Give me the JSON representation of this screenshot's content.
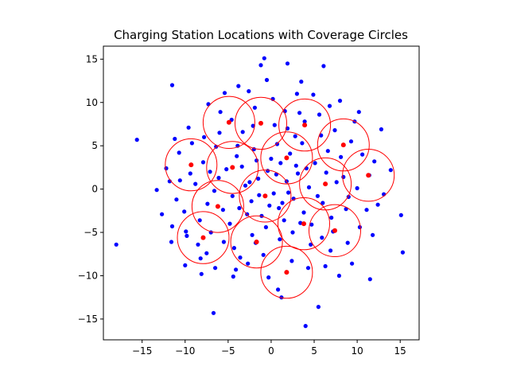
{
  "chart_data": {
    "type": "scatter",
    "title": "Charging Station Locations with Coverage Circles",
    "xlabel": "",
    "ylabel": "",
    "xlim": [
      -19.5,
      17.2
    ],
    "ylim": [
      -17.4,
      16.5
    ],
    "x_ticks": [
      -15,
      -10,
      -5,
      0,
      5,
      10,
      15
    ],
    "y_ticks": [
      -15,
      -10,
      -5,
      0,
      5,
      10,
      15
    ],
    "grid": false,
    "legend": "none",
    "colors": {
      "points": "#0000ff",
      "stations": "#ff0000",
      "circles": "#ff0000"
    },
    "coverage_radius": 3,
    "points_note": "dense cloud of user locations, roughly Gaussian around the origin",
    "points": [
      [
        -18.0,
        -6.4
      ],
      [
        -15.6,
        5.7
      ],
      [
        -13.3,
        -0.1
      ],
      [
        -11.5,
        12.0
      ],
      [
        -6.7,
        -14.3
      ],
      [
        15.3,
        -7.3
      ],
      [
        15.1,
        -3.0
      ],
      [
        13.9,
        2.2
      ],
      [
        11.5,
        -10.4
      ],
      [
        4.0,
        -15.8
      ],
      [
        5.5,
        -13.6
      ],
      [
        -0.8,
        15.1
      ],
      [
        1.9,
        14.5
      ],
      [
        -1.2,
        14.3
      ],
      [
        6.1,
        14.2
      ],
      [
        -11.2,
        5.8
      ],
      [
        -10.0,
        -8.8
      ],
      [
        -8.2,
        -8.0
      ],
      [
        12.8,
        6.9
      ],
      [
        13.1,
        -0.6
      ],
      [
        -10.6,
        1.0
      ],
      [
        -9.8,
        -5.4
      ],
      [
        -11.5,
        -4.3
      ],
      [
        9.4,
        -8.6
      ],
      [
        10.2,
        8.9
      ],
      [
        -3.8,
        11.9
      ],
      [
        3.5,
        12.4
      ],
      [
        1.2,
        -12.5
      ],
      [
        -4.4,
        -10.1
      ],
      [
        8.0,
        10.2
      ],
      [
        -1.5,
        1.2
      ],
      [
        0.3,
        -0.5
      ],
      [
        1.8,
        0.9
      ],
      [
        -0.4,
        2.1
      ],
      [
        0.9,
        -2.2
      ],
      [
        -2.3,
        -1.4
      ],
      [
        2.6,
        -1.1
      ],
      [
        -1.1,
        -3.1
      ],
      [
        3.1,
        1.8
      ],
      [
        -3.0,
        0.4
      ],
      [
        0.0,
        3.5
      ],
      [
        1.5,
        -3.6
      ],
      [
        -3.4,
        2.6
      ],
      [
        3.8,
        -2.7
      ],
      [
        -0.6,
        -4.4
      ],
      [
        4.4,
        0.2
      ],
      [
        -4.5,
        -0.8
      ],
      [
        2.2,
        4.1
      ],
      [
        -2.0,
        4.6
      ],
      [
        0.7,
        5.2
      ],
      [
        5.1,
        3.0
      ],
      [
        -5.2,
        2.3
      ],
      [
        4.7,
        -4.1
      ],
      [
        -4.8,
        -4.0
      ],
      [
        1.0,
        -5.8
      ],
      [
        -1.8,
        -6.2
      ],
      [
        6.0,
        -1.6
      ],
      [
        -6.1,
        1.3
      ],
      [
        2.8,
        6.1
      ],
      [
        -3.3,
        6.6
      ],
      [
        6.6,
        4.4
      ],
      [
        -6.4,
        4.9
      ],
      [
        5.9,
        -5.6
      ],
      [
        -5.5,
        -6.1
      ],
      [
        0.4,
        7.4
      ],
      [
        -0.9,
        -7.6
      ],
      [
        7.6,
        0.8
      ],
      [
        -7.4,
        -1.7
      ],
      [
        3.9,
        7.8
      ],
      [
        -4.6,
        8.0
      ],
      [
        8.1,
        3.7
      ],
      [
        -7.9,
        3.1
      ],
      [
        7.2,
        -4.9
      ],
      [
        -7.0,
        -5.0
      ],
      [
        2.4,
        -8.3
      ],
      [
        -2.7,
        -8.6
      ],
      [
        8.7,
        -2.3
      ],
      [
        -8.8,
        0.6
      ],
      [
        1.6,
        9.0
      ],
      [
        -1.9,
        9.4
      ],
      [
        5.6,
        8.6
      ],
      [
        -5.9,
        8.9
      ],
      [
        9.3,
        5.5
      ],
      [
        -9.2,
        5.3
      ],
      [
        8.9,
        -6.2
      ],
      [
        -8.5,
        -6.4
      ],
      [
        4.3,
        -9.1
      ],
      [
        -4.1,
        -9.3
      ],
      [
        10.0,
        0.1
      ],
      [
        -10.1,
        -2.6
      ],
      [
        0.2,
        10.4
      ],
      [
        -0.3,
        -10.2
      ],
      [
        6.8,
        9.6
      ],
      [
        -7.3,
        9.8
      ],
      [
        10.6,
        4.0
      ],
      [
        -10.7,
        4.2
      ],
      [
        10.3,
        -4.4
      ],
      [
        -9.9,
        -4.9
      ],
      [
        6.3,
        -8.9
      ],
      [
        -6.5,
        -9.1
      ],
      [
        11.4,
        1.6
      ],
      [
        -11.8,
        0.9
      ],
      [
        11.1,
        -2.4
      ],
      [
        -11.0,
        -1.2
      ],
      [
        3.0,
        11.0
      ],
      [
        -2.6,
        11.3
      ],
      [
        12.0,
        3.2
      ],
      [
        -12.2,
        2.4
      ],
      [
        11.8,
        -5.3
      ],
      [
        -11.6,
        -6.1
      ],
      [
        7.9,
        -10.0
      ],
      [
        -8.1,
        -9.8
      ],
      [
        -0.5,
        12.6
      ],
      [
        0.8,
        -11.6
      ],
      [
        12.4,
        -1.8
      ],
      [
        -12.7,
        -2.9
      ],
      [
        9.7,
        7.8
      ],
      [
        -9.6,
        7.1
      ],
      [
        4.9,
        10.9
      ],
      [
        -5.4,
        11.1
      ],
      [
        -2.8,
        -2.9
      ],
      [
        2.9,
        2.7
      ],
      [
        -1.7,
        3.3
      ],
      [
        1.3,
        -1.6
      ],
      [
        -0.2,
        -1.9
      ],
      [
        0.6,
        1.7
      ],
      [
        2.0,
        -0.4
      ],
      [
        -2.5,
        0.8
      ],
      [
        3.4,
        -3.9
      ],
      [
        -3.7,
        -2.2
      ],
      [
        1.1,
        3.0
      ],
      [
        -1.4,
        -0.7
      ],
      [
        4.1,
        2.4
      ],
      [
        -4.0,
        3.8
      ],
      [
        2.5,
        -5.0
      ],
      [
        -2.2,
        -5.3
      ],
      [
        5.4,
        -0.8
      ],
      [
        -5.6,
        -2.4
      ],
      [
        3.6,
        5.3
      ],
      [
        -3.9,
        5.0
      ],
      [
        6.4,
        1.9
      ],
      [
        -6.6,
        -0.2
      ],
      [
        4.6,
        -6.4
      ],
      [
        -4.3,
        -6.8
      ],
      [
        1.9,
        7.0
      ],
      [
        -2.1,
        7.3
      ],
      [
        7.0,
        -3.3
      ],
      [
        -7.1,
        2.0
      ],
      [
        5.8,
        6.2
      ],
      [
        -6.0,
        6.5
      ],
      [
        8.4,
        1.4
      ],
      [
        -8.3,
        -3.6
      ],
      [
        6.9,
        -7.1
      ],
      [
        -7.5,
        -7.4
      ],
      [
        3.3,
        8.8
      ],
      [
        -3.6,
        -7.9
      ],
      [
        9.0,
        -0.9
      ],
      [
        -9.4,
        1.8
      ],
      [
        7.4,
        6.8
      ],
      [
        -7.8,
        6.0
      ]
    ],
    "stations": [
      [
        -4.9,
        7.7
      ],
      [
        -1.2,
        7.6
      ],
      [
        3.9,
        7.4
      ],
      [
        -9.3,
        2.8
      ],
      [
        -4.5,
        2.5
      ],
      [
        1.8,
        3.6
      ],
      [
        8.4,
        5.1
      ],
      [
        11.3,
        1.6
      ],
      [
        -0.7,
        -0.8
      ],
      [
        6.3,
        0.6
      ],
      [
        -6.2,
        -2.0
      ],
      [
        3.8,
        -4.0
      ],
      [
        -7.9,
        -5.6
      ],
      [
        7.4,
        -4.8
      ],
      [
        -1.7,
        -6.1
      ],
      [
        1.8,
        -9.6
      ]
    ]
  }
}
